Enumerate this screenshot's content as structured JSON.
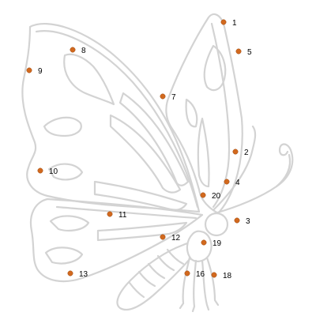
{
  "puzzle": {
    "subject": "butterfly",
    "dot_color": "#d2691e",
    "outline_color": "#d3d3d3",
    "dots": [
      {
        "label": "1"
      },
      {
        "label": "5"
      },
      {
        "label": "8"
      },
      {
        "label": "9"
      },
      {
        "label": "7"
      },
      {
        "label": "2"
      },
      {
        "label": "10"
      },
      {
        "label": "4"
      },
      {
        "label": "20"
      },
      {
        "label": "11"
      },
      {
        "label": "3"
      },
      {
        "label": "12"
      },
      {
        "label": "19"
      },
      {
        "label": "13"
      },
      {
        "label": "16"
      },
      {
        "label": "18"
      }
    ]
  }
}
